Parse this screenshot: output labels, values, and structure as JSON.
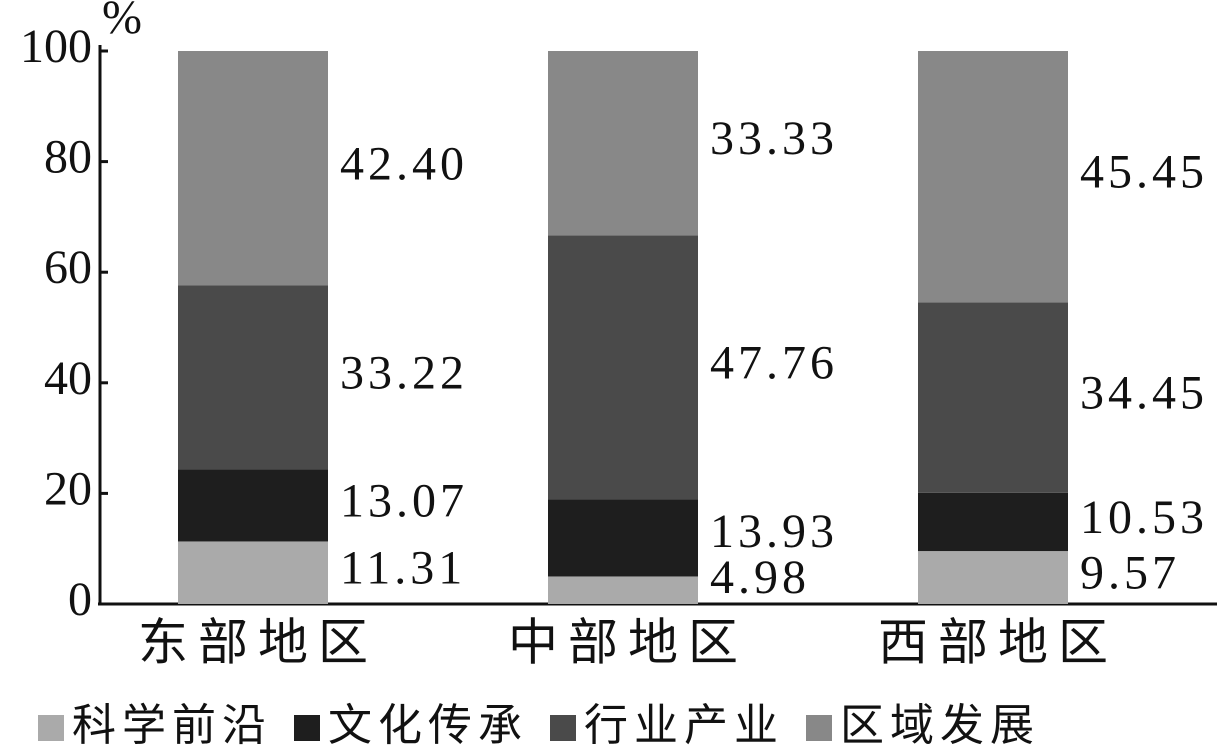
{
  "chart_data": {
    "type": "stacked_bar",
    "y_label": "%",
    "categories": [
      "东部地区",
      "中部地区",
      "西部地区"
    ],
    "series": [
      {
        "name": "科学前沿",
        "color": "#aaaaaa",
        "values": [
          11.31,
          4.98,
          9.57
        ]
      },
      {
        "name": "文化传承",
        "color": "#1e1e1e",
        "values": [
          13.07,
          13.93,
          10.53
        ]
      },
      {
        "name": "行业产业",
        "color": "#4a4a4a",
        "values": [
          33.22,
          47.76,
          34.45
        ]
      },
      {
        "name": "区域发展",
        "color": "#888888",
        "values": [
          42.4,
          33.33,
          45.45
        ],
        "value_labels": [
          "42.40",
          "33.33",
          "45.45"
        ]
      }
    ],
    "ylim": [
      0,
      100
    ],
    "yticks": [
      0,
      20,
      40,
      60,
      80,
      100
    ],
    "legend": "bottom"
  }
}
